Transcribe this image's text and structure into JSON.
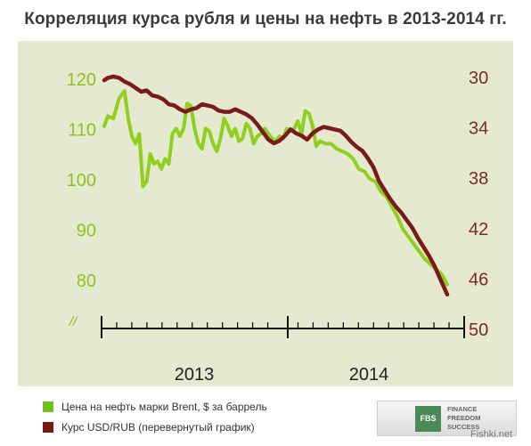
{
  "title": "Корреляция курса рубля и цены на нефть в 2013-2014 гг.",
  "legend": {
    "brent_label": "Цена на нефть марки Brent, $ за баррель",
    "rub_label": "Курс USD/RUB (перевернутый график)"
  },
  "logo": {
    "mark": "FBS",
    "line1": "FINANCE",
    "line2": "FREEDOM",
    "line3": "SUCCESS"
  },
  "watermark": "Fishki.net",
  "colors": {
    "background": "#e4e9cf",
    "brent": "#8fd01e",
    "rub": "#7a1a1a",
    "left_axis": "#8fc21f",
    "right_axis": "#7a2a2a"
  },
  "chart_data": {
    "type": "line",
    "title": "Корреляция курса рубля и цены на нефть в 2013-2014 гг.",
    "x_tick_labels": [
      "2013",
      "2014"
    ],
    "left_axis": {
      "ticks": [
        120,
        110,
        100,
        90,
        80
      ],
      "break_symbol": "//",
      "ylim": [
        80,
        120
      ]
    },
    "right_axis": {
      "ticks": [
        30,
        34,
        38,
        42,
        46,
        50
      ],
      "inverted": true,
      "ylim": [
        30,
        50
      ]
    },
    "grid": false,
    "legend_position": "bottom-left",
    "series": [
      {
        "name": "Цена на нефть марки Brent, $ за баррель",
        "axis": "left",
        "x": [
          2013.0,
          2013.02,
          2013.05,
          2013.08,
          2013.11,
          2013.13,
          2013.15,
          2013.17,
          2013.19,
          2013.21,
          2013.23,
          2013.25,
          2013.27,
          2013.29,
          2013.31,
          2013.33,
          2013.35,
          2013.37,
          2013.39,
          2013.41,
          2013.43,
          2013.45,
          2013.47,
          2013.49,
          2013.51,
          2013.53,
          2013.55,
          2013.57,
          2013.59,
          2013.61,
          2013.63,
          2013.65,
          2013.67,
          2013.69,
          2013.71,
          2013.73,
          2013.75,
          2013.77,
          2013.79,
          2013.81,
          2013.83,
          2013.85,
          2013.87,
          2013.89,
          2013.91,
          2013.93,
          2013.95,
          2013.97,
          2013.99,
          2014.01,
          2014.03,
          2014.05,
          2014.07,
          2014.09,
          2014.11,
          2014.13,
          2014.15,
          2014.17,
          2014.2,
          2014.23,
          2014.26,
          2014.29,
          2014.32,
          2014.35,
          2014.38,
          2014.41,
          2014.44,
          2014.47,
          2014.5,
          2014.53,
          2014.56,
          2014.59,
          2014.62,
          2014.65,
          2014.68,
          2014.71,
          2014.74,
          2014.77,
          2014.8,
          2014.83,
          2014.86
        ],
        "values": [
          110.5,
          112.5,
          112,
          116,
          117.5,
          112,
          108.5,
          107,
          109,
          98.5,
          99.5,
          105,
          103,
          103.5,
          102,
          104,
          103,
          109,
          110,
          108.5,
          110,
          115,
          114.5,
          110,
          107,
          106,
          110,
          109.5,
          107,
          105.5,
          108,
          112,
          110.5,
          108.5,
          110,
          107.5,
          108,
          111,
          110,
          107,
          108.5,
          109,
          110,
          109,
          108,
          107.5,
          108.5,
          108,
          110,
          109.5,
          110,
          111.5,
          109,
          113.5,
          113,
          110.5,
          106.5,
          107.5,
          107,
          107,
          106,
          105.5,
          105,
          104,
          102,
          101.5,
          100,
          99.5,
          97.5,
          96.5,
          94.5,
          92.5,
          90,
          88.5,
          87,
          85.5,
          84,
          83,
          82,
          81,
          79
        ]
      },
      {
        "name": "Курс USD/RUB (перевернутый график)",
        "axis": "right",
        "x": [
          2013.0,
          2013.02,
          2013.05,
          2013.08,
          2013.11,
          2013.14,
          2013.17,
          2013.2,
          2013.23,
          2013.26,
          2013.29,
          2013.32,
          2013.35,
          2013.38,
          2013.41,
          2013.44,
          2013.47,
          2013.5,
          2013.53,
          2013.56,
          2013.59,
          2013.62,
          2013.65,
          2013.68,
          2013.71,
          2013.74,
          2013.77,
          2013.8,
          2013.83,
          2013.86,
          2013.89,
          2013.92,
          2013.95,
          2013.98,
          2014.01,
          2014.04,
          2014.07,
          2014.1,
          2014.13,
          2014.16,
          2014.19,
          2014.22,
          2014.25,
          2014.28,
          2014.31,
          2014.34,
          2014.37,
          2014.4,
          2014.43,
          2014.46,
          2014.49,
          2014.52,
          2014.55,
          2014.58,
          2014.61,
          2014.64,
          2014.67,
          2014.7,
          2014.73,
          2014.76,
          2014.79,
          2014.82,
          2014.86
        ],
        "values": [
          30.3,
          30.1,
          30.0,
          30.1,
          30.4,
          30.6,
          30.9,
          31.2,
          31.1,
          31.5,
          31.6,
          31.8,
          32.2,
          32.3,
          32.6,
          32.8,
          32.6,
          32.5,
          32.2,
          32.3,
          32.4,
          32.7,
          32.8,
          32.8,
          32.6,
          32.8,
          33.0,
          33.3,
          33.8,
          34.4,
          35.0,
          35.3,
          35.1,
          34.7,
          34.2,
          34.5,
          34.7,
          35.0,
          34.5,
          34.2,
          34.0,
          34.1,
          34.2,
          34.3,
          34.7,
          35.2,
          35.6,
          35.9,
          36.5,
          37.2,
          38.3,
          39.0,
          39.7,
          40.3,
          40.8,
          41.4,
          42.0,
          42.8,
          43.5,
          44.2,
          45.0,
          46.0,
          47.3
        ]
      }
    ]
  }
}
